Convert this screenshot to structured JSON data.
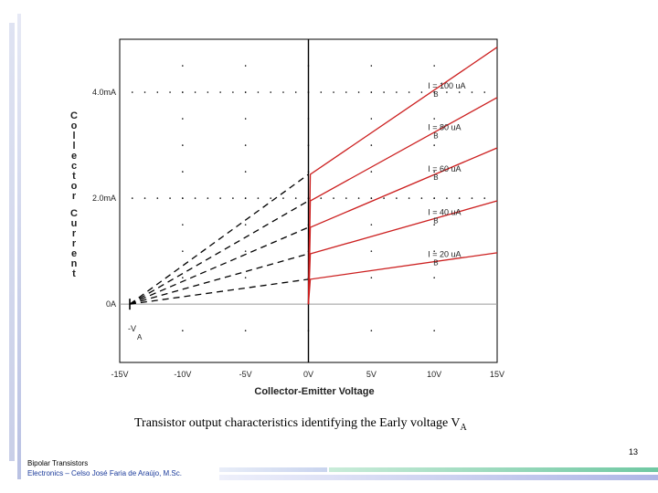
{
  "chart_data": {
    "type": "line",
    "title": "",
    "xlabel": "Collector-Emitter Voltage",
    "ylabel_letters": [
      "C",
      "o",
      "l",
      "l",
      "e",
      "c",
      "t",
      "o",
      "r",
      " ",
      "C",
      "u",
      "r",
      "r",
      "e",
      "n",
      "t"
    ],
    "xlim": [
      -15,
      15
    ],
    "ylim": [
      -1.1,
      5.0
    ],
    "x_ticks": [
      {
        "value": -15,
        "label": "-15V"
      },
      {
        "value": -10,
        "label": "-10V"
      },
      {
        "value": -5,
        "label": "-5V"
      },
      {
        "value": 0,
        "label": "0V"
      },
      {
        "value": 5,
        "label": "5V"
      },
      {
        "value": 10,
        "label": "10V"
      },
      {
        "value": 15,
        "label": "15V"
      }
    ],
    "y_ticks": [
      {
        "value": 4.0,
        "label": "4.0mA"
      },
      {
        "value": 2.0,
        "label": "2.0mA"
      },
      {
        "value": 0,
        "label": "0A"
      }
    ],
    "early_voltage": -14.2,
    "early_label_main": "-V",
    "early_label_sub": "A",
    "series": [
      {
        "name": "IB = 100 uA",
        "label_main": "I = 100 uA",
        "label_sub": "B",
        "y_at_0": 2.45,
        "y_at_max": 4.85
      },
      {
        "name": "IB = 80 uA",
        "label_main": "I = 80 uA",
        "label_sub": "B",
        "y_at_0": 1.95,
        "y_at_max": 3.9
      },
      {
        "name": "IB = 60 uA",
        "label_main": "I = 60 uA",
        "label_sub": "B",
        "y_at_0": 1.45,
        "y_at_max": 2.95
      },
      {
        "name": "IB = 40 uA",
        "label_main": "I = 40 uA",
        "label_sub": "B",
        "y_at_0": 0.95,
        "y_at_max": 1.95
      },
      {
        "name": "IB = 20 uA",
        "label_main": "I = 20 uA",
        "label_sub": "B",
        "y_at_0": 0.47,
        "y_at_max": 0.97
      }
    ],
    "colors": {
      "positive_region": "#cc1f1f",
      "extrapolation": "#000000",
      "grid": "#000000",
      "axis": "#999999"
    }
  },
  "caption": {
    "main": "Transistor output characteristics identifying the Early voltage V",
    "sub": "A"
  },
  "slide": {
    "page_number": "13",
    "footer_title": "Bipolar Transistors",
    "footer_subtitle": "Electronics – Celso José Faria de Araújo, M.Sc."
  }
}
